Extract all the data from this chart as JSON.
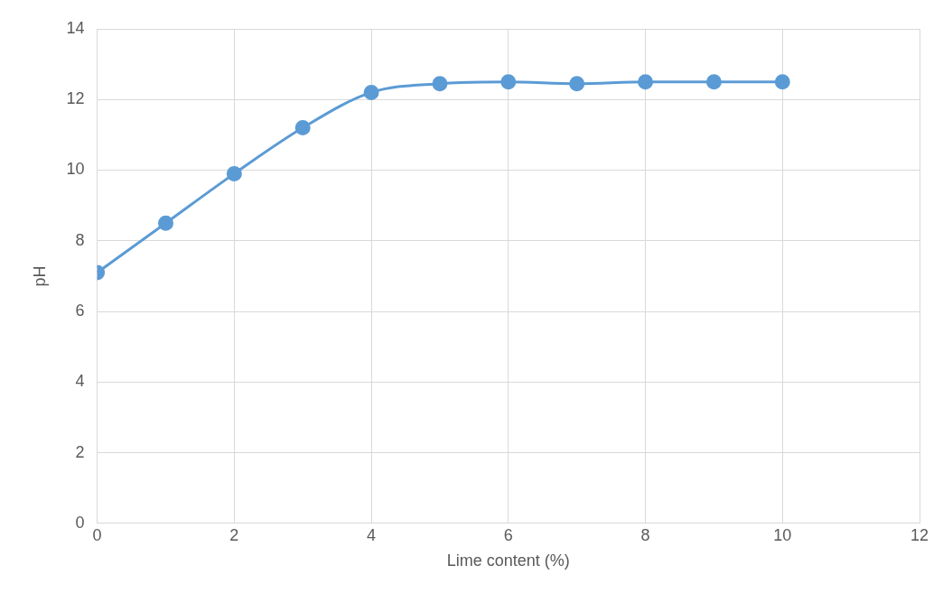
{
  "chart_data": {
    "type": "line",
    "xlabel": "Lime content (%)",
    "ylabel": "pH",
    "x": [
      0,
      1,
      2,
      3,
      4,
      5,
      6,
      7,
      8,
      9,
      10
    ],
    "series": [
      {
        "color": "#5b9bd5",
        "values": [
          7.1,
          8.5,
          9.9,
          11.2,
          12.2,
          12.45,
          12.5,
          12.45,
          12.5,
          12.5,
          12.5
        ]
      }
    ],
    "xlim": [
      0,
      12
    ],
    "xticks": [
      0,
      2,
      4,
      6,
      8,
      10,
      12
    ],
    "ylim": [
      0,
      14
    ],
    "yticks": [
      0,
      2,
      4,
      6,
      8,
      10,
      12,
      14
    ],
    "grid": true,
    "legend": false,
    "marker": "circle",
    "line_style": "solid"
  }
}
